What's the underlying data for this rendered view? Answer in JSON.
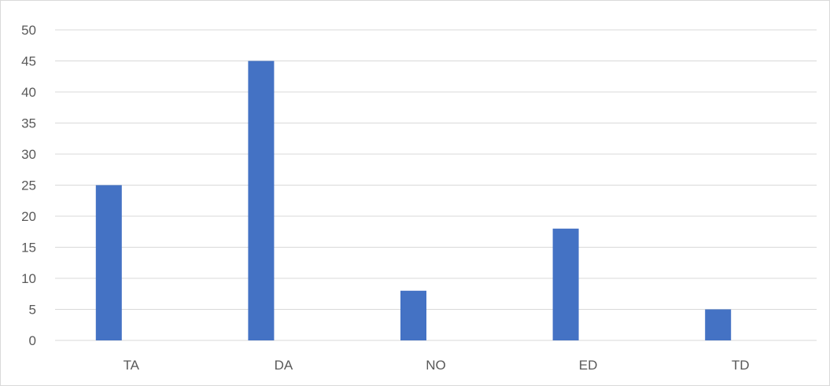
{
  "chart_data": {
    "type": "bar",
    "title": "",
    "xlabel": "",
    "ylabel": "",
    "categories": [
      "TA",
      "DA",
      "NO",
      "ED",
      "TD"
    ],
    "values": [
      25,
      45,
      8,
      18,
      5
    ],
    "ylim": [
      0,
      50
    ],
    "yticks": [
      "0",
      "5",
      "10",
      "15",
      "20",
      "25",
      "30",
      "35",
      "40",
      "45",
      "50"
    ],
    "grid": true,
    "legend": "none",
    "colors": {
      "bar": "#4472c4",
      "grid": "#d9d9d9",
      "text": "#595959"
    }
  }
}
